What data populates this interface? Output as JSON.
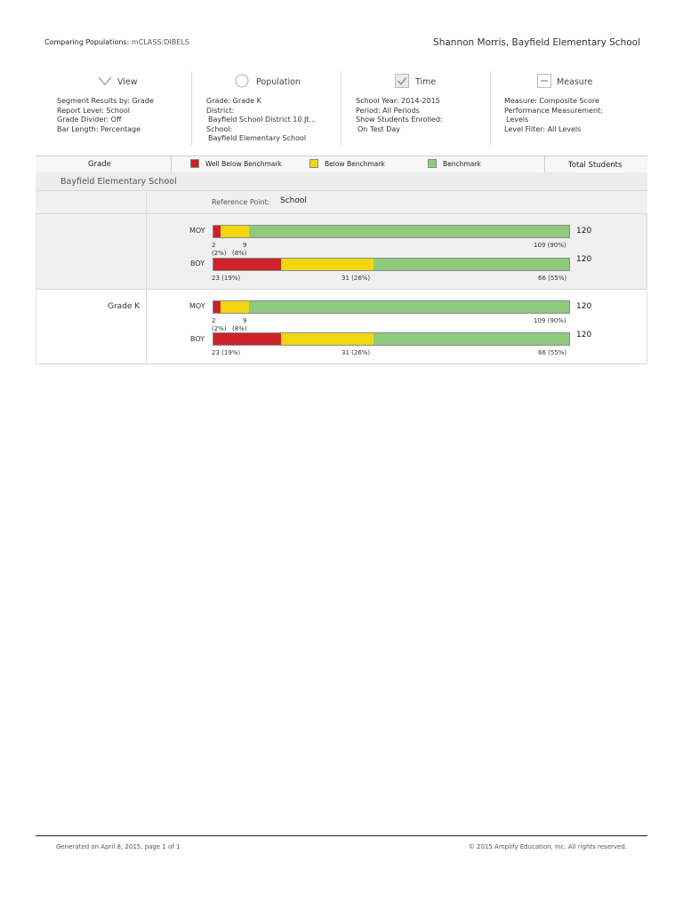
{
  "header": {
    "title_label": "Comparing Populations:",
    "title_product": "mCLASS:DIBELS",
    "user_school": "Shannon Morris, Bayfield Elementary School"
  },
  "panels": {
    "view": {
      "title": "View",
      "icon": "chevron-down-icon",
      "lines": [
        "Segment Results by: Grade",
        "Report Level: School",
        "Grade Divider: Off",
        "Bar Length: Percentage"
      ]
    },
    "population": {
      "title": "Population",
      "icon": "circle-icon",
      "lines": [
        "Grade: Grade K",
        "District:",
        "Bayfield School District 10 Jt...",
        "School:",
        "Bayfield Elementary School"
      ]
    },
    "time": {
      "title": "Time",
      "icon": "checkbox-check-icon",
      "lines": [
        "School Year: 2014-2015",
        "Period: All Periods",
        "Show Students Enrolled:",
        "On Test Day"
      ]
    },
    "measure": {
      "title": "Measure",
      "icon": "minus-box-icon",
      "lines": [
        "Measure: Composite Score",
        "Performance Measurement:",
        "Levels",
        "Level Filter: All Levels"
      ]
    }
  },
  "table": {
    "grade_header": "Grade",
    "total_header": "Total Students",
    "legend": [
      {
        "label": "Well Below Benchmark",
        "color": "#cc2229"
      },
      {
        "label": "Below Benchmark",
        "color": "#f2d70f"
      },
      {
        "label": "Benchmark",
        "color": "#8fca7e"
      }
    ],
    "school_name": "Bayfield Elementary School",
    "reference_label": "Reference Point:",
    "reference_value": "School",
    "groups": [
      {
        "label": "",
        "rows": [
          {
            "period": "MOY",
            "pct": [
              2,
              8,
              90
            ],
            "labels": {
              "wb_count": "2",
              "wb_pct": "(2%)",
              "b_count": "9",
              "b_pct": "(8%)",
              "bm": "109 (90%)"
            },
            "total": "120"
          },
          {
            "period": "BOY",
            "pct": [
              19,
              26,
              55
            ],
            "labels": {
              "wb": "23 (19%)",
              "b": "31 (26%)",
              "bm": "66 (55%)"
            },
            "total": "120"
          }
        ]
      },
      {
        "label": "Grade K",
        "rows": [
          {
            "period": "MOY",
            "pct": [
              2,
              8,
              90
            ],
            "labels": {
              "wb_count": "2",
              "wb_pct": "(2%)",
              "b_count": "9",
              "b_pct": "(8%)",
              "bm": "109 (90%)"
            },
            "total": "120"
          },
          {
            "period": "BOY",
            "pct": [
              19,
              26,
              55
            ],
            "labels": {
              "wb": "23 (19%)",
              "b": "31 (26%)",
              "bm": "66 (55%)"
            },
            "total": "120"
          }
        ]
      }
    ]
  },
  "footer": {
    "generated": "Generated on April 8, 2015, page 1 of 1",
    "copyright": "© 2015 Amplify Education, Inc. All rights reserved."
  }
}
